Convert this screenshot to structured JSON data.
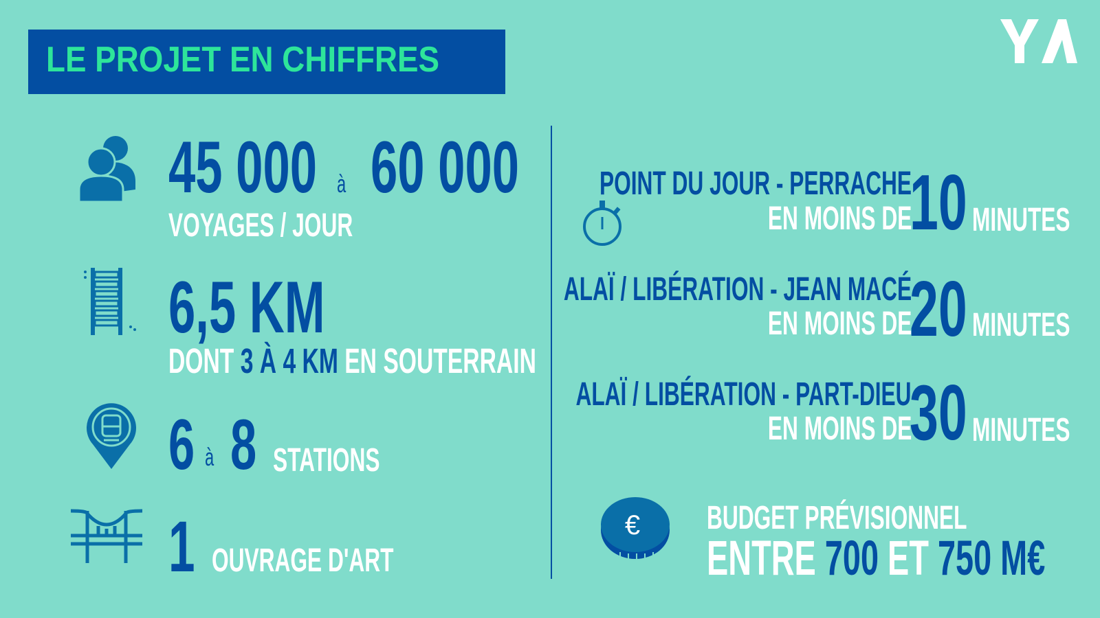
{
  "header": {
    "title": "LE PROJET EN CHIFFRES",
    "logo": "YA"
  },
  "colors": {
    "background": "#80dccb",
    "navy": "#034ea2",
    "title_green": "#2ee59a",
    "icon_blue": "#0a6fa8",
    "white": "#ffffff"
  },
  "left": {
    "ridership": {
      "icon": "people-icon",
      "from": "45 000",
      "sep": "à",
      "to": "60 000",
      "label": "VOYAGES / JOUR"
    },
    "length": {
      "icon": "rail-track-icon",
      "value": "6,5 KM",
      "label_pre": "DONT",
      "label_value": "3 À 4 KM",
      "label_post": "EN SOUTERRAIN"
    },
    "stations": {
      "icon": "station-pin-icon",
      "from": "6",
      "sep": "à",
      "to": "8",
      "label": "STATIONS"
    },
    "structures": {
      "icon": "bridge-icon",
      "value": "1",
      "label": "OUVRAGE D'ART"
    }
  },
  "right": {
    "travel_icon": "stopwatch-icon",
    "travel_times": [
      {
        "route": "POINT DU JOUR - PERRACHE",
        "prefix": "EN MOINS DE",
        "value": "10",
        "unit": "MINUTES"
      },
      {
        "route": "ALAÏ / LIBÉRATION - JEAN MACÉ",
        "prefix": "EN MOINS DE",
        "value": "20",
        "unit": "MINUTES"
      },
      {
        "route": "ALAÏ / LIBÉRATION - PART-DIEU",
        "prefix": "EN MOINS DE",
        "value": "30",
        "unit": "MINUTES"
      }
    ],
    "budget": {
      "icon": "euro-coin-icon",
      "label": "BUDGET PRÉVISIONNEL",
      "w1": "ENTRE",
      "from": "700",
      "w2": "ET",
      "to": "750 M€"
    }
  }
}
